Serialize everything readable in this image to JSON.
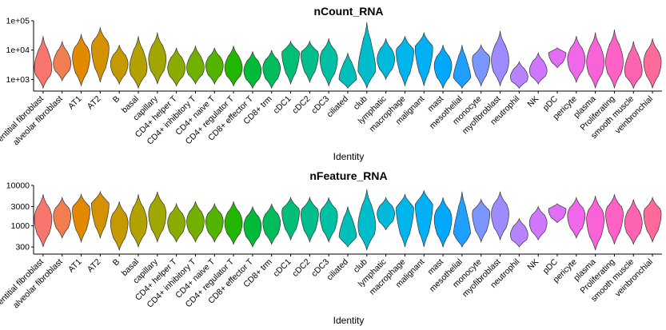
{
  "chart_data": [
    {
      "type": "violin",
      "title": "nCount_RNA",
      "xlabel": "Identity",
      "ylabel": "",
      "yscale": "log10",
      "ylim": [
        400,
        100000
      ],
      "ytick_values": [
        1000,
        10000,
        100000
      ],
      "ytick_labels": [
        "1e+03",
        "1e+04",
        "1e+05"
      ],
      "categories": [
        "adventitial fibroblast",
        "alveolar fibroblast",
        "AT1",
        "AT2",
        "B",
        "basal",
        "capillary",
        "CD4+ helper T",
        "CD4+ inhibitory T",
        "CD4+ naive T",
        "CD4+ regulator T",
        "CD8+ effector T",
        "CD8+ trm",
        "cDC1",
        "cDC2",
        "cDC3",
        "ciliated",
        "club",
        "lymphatic",
        "macrophage",
        "malignant",
        "mast",
        "mesothelial",
        "monocyte",
        "myofibroblast",
        "neutrophil",
        "NK",
        "pDC",
        "pericyte",
        "plasma",
        "Proliferating",
        "smooth muscle",
        "veinbronchial"
      ],
      "colors": [
        "#F8766D",
        "#F07E4E",
        "#E38900",
        "#D49200",
        "#C49A00",
        "#B3A100",
        "#A0A700",
        "#8AAB00",
        "#72B000",
        "#53B400",
        "#21B700",
        "#00BA38",
        "#00BC5B",
        "#00BE75",
        "#00BF8C",
        "#00C0A3",
        "#00BFB8",
        "#00BDCB",
        "#00BADC",
        "#00B5EB",
        "#00B0F6",
        "#00A9FF",
        "#1FA0FF",
        "#7C96FF",
        "#9E8BFF",
        "#B883FF",
        "#CF78FF",
        "#E26EF7",
        "#F067E9",
        "#FA62D8",
        "#FF61C5",
        "#FF64B0",
        "#FF6A98"
      ],
      "series": [
        {
          "name": "adventitial fibroblast",
          "min": 500,
          "max": 30000,
          "median": 2500
        },
        {
          "name": "alveolar fibroblast",
          "min": 900,
          "max": 20000,
          "median": 3500
        },
        {
          "name": "AT1",
          "min": 600,
          "max": 35000,
          "median": 6000
        },
        {
          "name": "AT2",
          "min": 800,
          "max": 60000,
          "median": 12000
        },
        {
          "name": "B",
          "min": 700,
          "max": 15000,
          "median": 3500
        },
        {
          "name": "basal",
          "min": 500,
          "max": 30000,
          "median": 2500
        },
        {
          "name": "capillary",
          "min": 700,
          "max": 40000,
          "median": 5000
        },
        {
          "name": "CD4+ helper T",
          "min": 600,
          "max": 12000,
          "median": 2500
        },
        {
          "name": "CD4+ inhibitory T",
          "min": 700,
          "max": 14000,
          "median": 2500
        },
        {
          "name": "CD4+ naive T",
          "min": 700,
          "max": 12000,
          "median": 3000
        },
        {
          "name": "CD4+ regulator T",
          "min": 600,
          "max": 14000,
          "median": 2500
        },
        {
          "name": "CD8+ effector T",
          "min": 500,
          "max": 9000,
          "median": 2000
        },
        {
          "name": "CD8+ trm",
          "min": 500,
          "max": 10000,
          "median": 2500
        },
        {
          "name": "cDC1",
          "min": 700,
          "max": 20000,
          "median": 8000
        },
        {
          "name": "cDC2",
          "min": 800,
          "max": 20000,
          "median": 7000
        },
        {
          "name": "cDC3",
          "min": 600,
          "max": 25000,
          "median": 5000
        },
        {
          "name": "ciliated",
          "min": 500,
          "max": 8000,
          "median": 1000
        },
        {
          "name": "club",
          "min": 500,
          "max": 90000,
          "median": 2000
        },
        {
          "name": "lymphatic",
          "min": 1000,
          "max": 25000,
          "median": 5000
        },
        {
          "name": "macrophage",
          "min": 600,
          "max": 30000,
          "median": 9000
        },
        {
          "name": "malignant",
          "min": 600,
          "max": 40000,
          "median": 12000
        },
        {
          "name": "mast",
          "min": 500,
          "max": 15000,
          "median": 3000
        },
        {
          "name": "mesothelial",
          "min": 500,
          "max": 15000,
          "median": 1000
        },
        {
          "name": "monocyte",
          "min": 600,
          "max": 15000,
          "median": 5000
        },
        {
          "name": "myofibroblast",
          "min": 600,
          "max": 45000,
          "median": 4500
        },
        {
          "name": "neutrophil",
          "min": 500,
          "max": 4000,
          "median": 1200
        },
        {
          "name": "NK",
          "min": 700,
          "max": 8000,
          "median": 2000
        },
        {
          "name": "pDC",
          "min": 2500,
          "max": 12000,
          "median": 8000
        },
        {
          "name": "pericyte",
          "min": 800,
          "max": 30000,
          "median": 5000
        },
        {
          "name": "plasma",
          "min": 500,
          "max": 40000,
          "median": 4000
        },
        {
          "name": "Proliferating",
          "min": 500,
          "max": 50000,
          "median": 4000
        },
        {
          "name": "smooth muscle",
          "min": 500,
          "max": 20000,
          "median": 2000
        },
        {
          "name": "veinbronchial",
          "min": 500,
          "max": 25000,
          "median": 4000
        }
      ]
    },
    {
      "type": "violin",
      "title": "nFeature_RNA",
      "xlabel": "Identity",
      "ylabel": "",
      "yscale": "log10",
      "ylim": [
        200,
        10000
      ],
      "ytick_values": [
        300,
        1000,
        3000,
        10000
      ],
      "ytick_labels": [
        "300",
        "1000",
        "3000",
        "10000"
      ],
      "categories": [
        "adventitial fibroblast",
        "alveolar fibroblast",
        "AT1",
        "AT2",
        "B",
        "basal",
        "capillary",
        "CD4+ helper T",
        "CD4+ inhibitory T",
        "CD4+ naive T",
        "CD4+ regulator T",
        "CD8+ effector T",
        "CD8+ trm",
        "cDC1",
        "cDC2",
        "cDC3",
        "ciliated",
        "club",
        "lymphatic",
        "macrophage",
        "malignant",
        "mast",
        "mesothelial",
        "monocyte",
        "myofibroblast",
        "neutrophil",
        "NK",
        "pDC",
        "pericyte",
        "plasma",
        "Proliferating",
        "smooth muscle",
        "veinbronchial"
      ],
      "colors": [
        "#F8766D",
        "#F07E4E",
        "#E38900",
        "#D49200",
        "#C49A00",
        "#B3A100",
        "#A0A700",
        "#8AAB00",
        "#72B000",
        "#53B400",
        "#21B700",
        "#00BA38",
        "#00BC5B",
        "#00BE75",
        "#00BF8C",
        "#00C0A3",
        "#00BFB8",
        "#00BDCB",
        "#00BADC",
        "#00B5EB",
        "#00B0F6",
        "#00A9FF",
        "#1FA0FF",
        "#7C96FF",
        "#9E8BFF",
        "#B883FF",
        "#CF78FF",
        "#E26EF7",
        "#F067E9",
        "#FA62D8",
        "#FF61C5",
        "#FF64B0",
        "#FF6A98"
      ],
      "series": [
        {
          "name": "adventitial fibroblast",
          "min": 300,
          "max": 6000,
          "median": 1500
        },
        {
          "name": "alveolar fibroblast",
          "min": 500,
          "max": 5000,
          "median": 1800
        },
        {
          "name": "AT1",
          "min": 400,
          "max": 6000,
          "median": 2500
        },
        {
          "name": "AT2",
          "min": 500,
          "max": 7000,
          "median": 3500
        },
        {
          "name": "B",
          "min": 250,
          "max": 4000,
          "median": 1200
        },
        {
          "name": "basal",
          "min": 300,
          "max": 6000,
          "median": 1200
        },
        {
          "name": "capillary",
          "min": 400,
          "max": 7000,
          "median": 2000
        },
        {
          "name": "CD4+ helper T",
          "min": 400,
          "max": 3500,
          "median": 1200
        },
        {
          "name": "CD4+ inhibitory T",
          "min": 400,
          "max": 4000,
          "median": 1300
        },
        {
          "name": "CD4+ naive T",
          "min": 400,
          "max": 3500,
          "median": 1300
        },
        {
          "name": "CD4+ regulator T",
          "min": 350,
          "max": 4000,
          "median": 1200
        },
        {
          "name": "CD8+ effector T",
          "min": 300,
          "max": 3000,
          "median": 1000
        },
        {
          "name": "CD8+ trm",
          "min": 350,
          "max": 3500,
          "median": 1200
        },
        {
          "name": "cDC1",
          "min": 450,
          "max": 5000,
          "median": 2200
        },
        {
          "name": "cDC2",
          "min": 400,
          "max": 5000,
          "median": 2000
        },
        {
          "name": "cDC3",
          "min": 400,
          "max": 5000,
          "median": 1800
        },
        {
          "name": "ciliated",
          "min": 300,
          "max": 3000,
          "median": 500
        },
        {
          "name": "club",
          "min": 250,
          "max": 8000,
          "median": 1000
        },
        {
          "name": "lymphatic",
          "min": 800,
          "max": 5000,
          "median": 2000
        },
        {
          "name": "macrophage",
          "min": 300,
          "max": 6000,
          "median": 2800
        },
        {
          "name": "malignant",
          "min": 300,
          "max": 7500,
          "median": 3500
        },
        {
          "name": "mast",
          "min": 300,
          "max": 5000,
          "median": 1500
        },
        {
          "name": "mesothelial",
          "min": 300,
          "max": 7000,
          "median": 500
        },
        {
          "name": "monocyte",
          "min": 400,
          "max": 4500,
          "median": 2000
        },
        {
          "name": "myofibroblast",
          "min": 450,
          "max": 7000,
          "median": 2000
        },
        {
          "name": "neutrophil",
          "min": 300,
          "max": 1500,
          "median": 600
        },
        {
          "name": "NK",
          "min": 450,
          "max": 3000,
          "median": 1200
        },
        {
          "name": "pDC",
          "min": 1200,
          "max": 3500,
          "median": 2500
        },
        {
          "name": "pericyte",
          "min": 500,
          "max": 5000,
          "median": 1800
        },
        {
          "name": "plasma",
          "min": 250,
          "max": 5500,
          "median": 1500
        },
        {
          "name": "Proliferating",
          "min": 350,
          "max": 6000,
          "median": 2000
        },
        {
          "name": "smooth muscle",
          "min": 350,
          "max": 4500,
          "median": 1200
        },
        {
          "name": "veinbronchial",
          "min": 400,
          "max": 5000,
          "median": 2000
        }
      ]
    }
  ]
}
